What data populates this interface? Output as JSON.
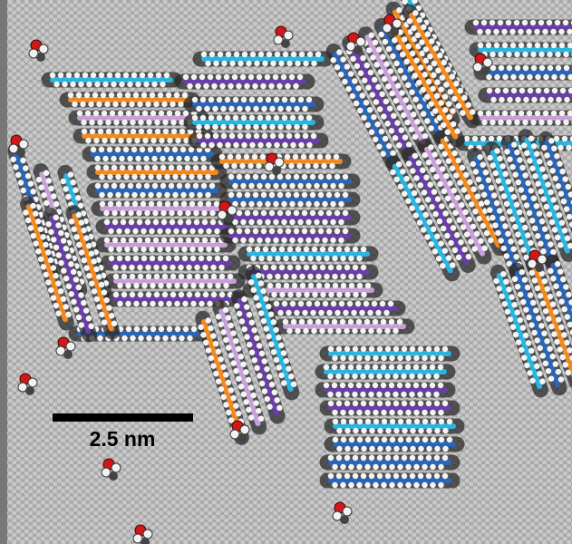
{
  "scale_bar": {
    "label": "2.5 nm"
  }
}
